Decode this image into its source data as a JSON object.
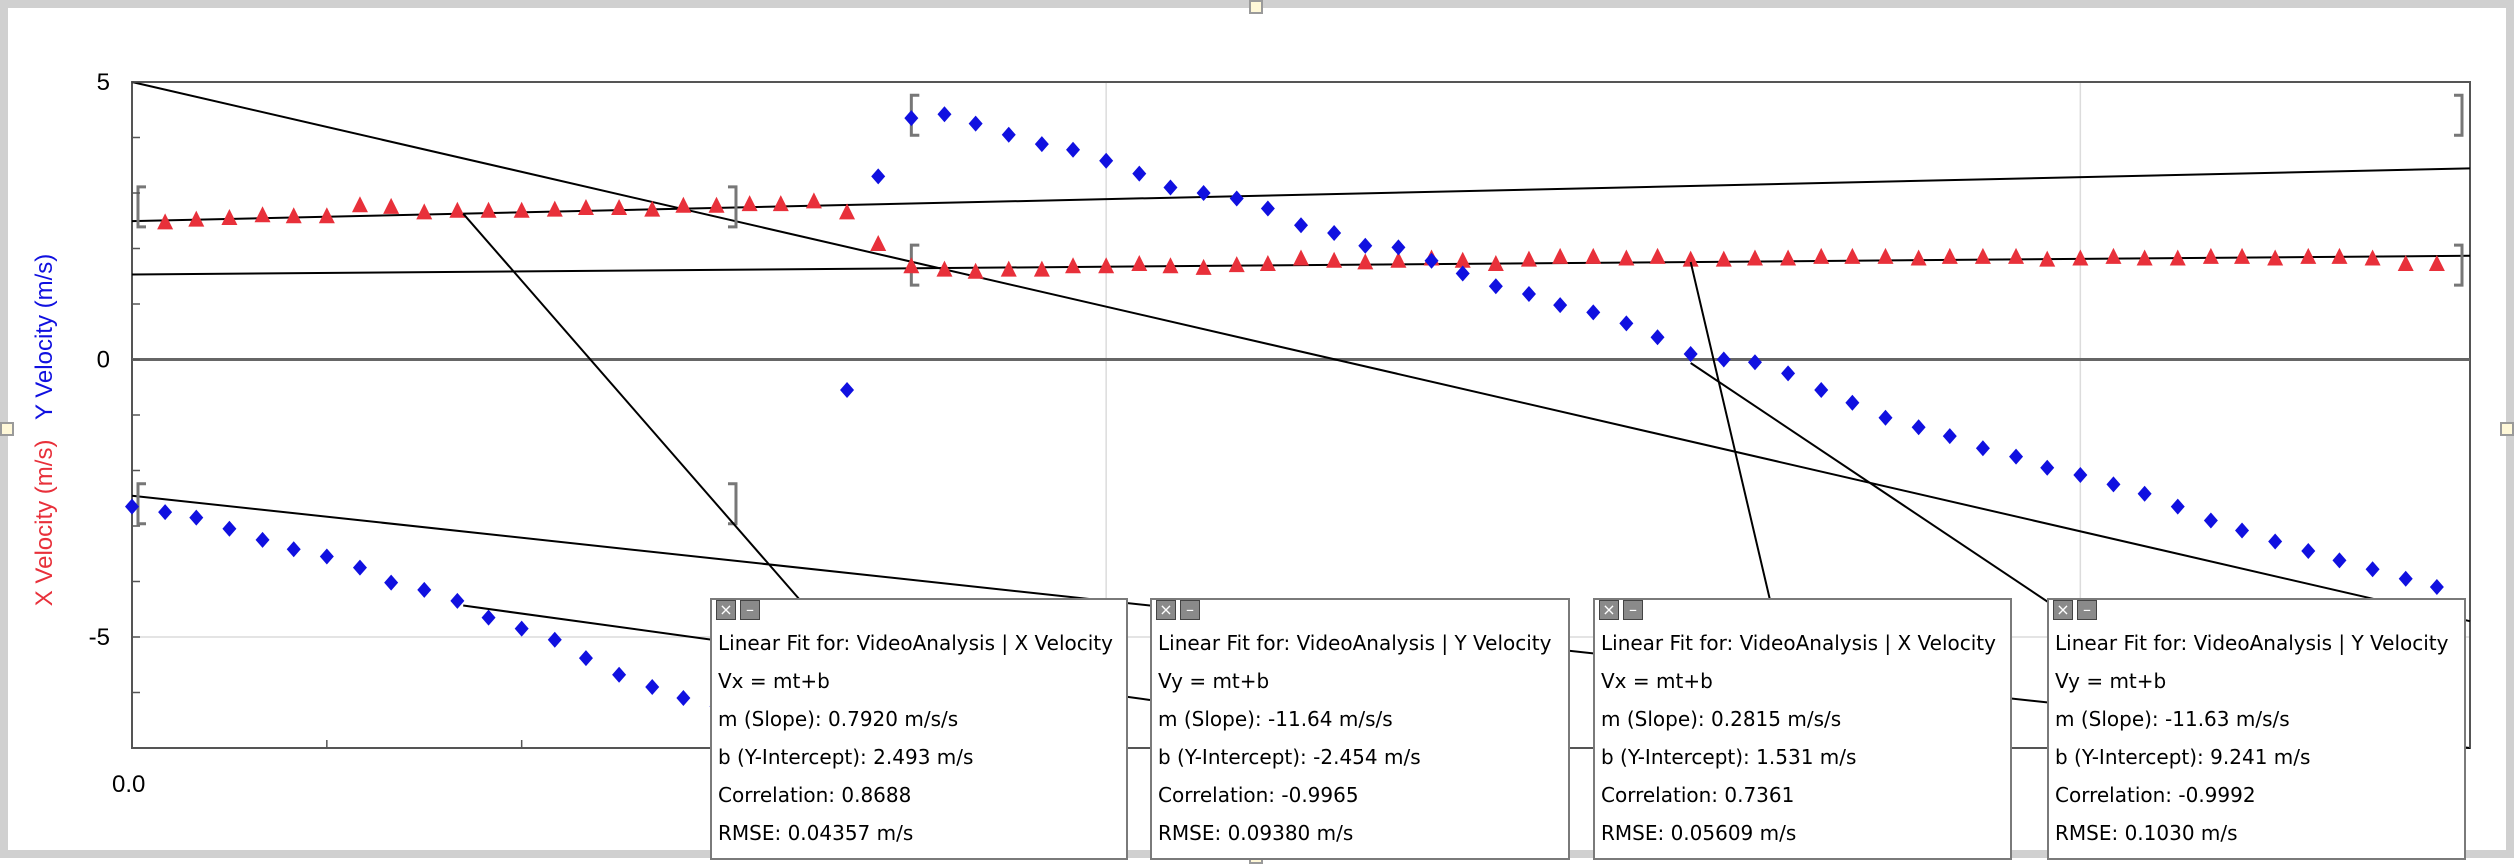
{
  "chart_data": {
    "type": "scatter",
    "y_axis_label_parts": [
      "X Velocity (m/s)",
      "Y Velocity (m/s)"
    ],
    "y_axis_label_colors": [
      "#e8303a",
      "#1010e0"
    ],
    "xlim": [
      0.0,
      1.2
    ],
    "ylim": [
      -7,
      5
    ],
    "x_tick_labels": [
      {
        "x": 0.0,
        "text": "0.0"
      }
    ],
    "y_tick_labels": [
      {
        "y": 5,
        "text": "5"
      },
      {
        "y": 0,
        "text": "0"
      },
      {
        "y": -5,
        "text": "-5"
      }
    ],
    "grid": true,
    "series": [
      {
        "name": "X Velocity",
        "marker": "triangle",
        "color": "#e8303a",
        "x": [
          0.017,
          0.033,
          0.05,
          0.067,
          0.083,
          0.1,
          0.117,
          0.133,
          0.15,
          0.167,
          0.183,
          0.2,
          0.217,
          0.233,
          0.25,
          0.267,
          0.283,
          0.3,
          0.317,
          0.333,
          0.35,
          0.367,
          0.383,
          0.4,
          0.417,
          0.433,
          0.45,
          0.467,
          0.483,
          0.5,
          0.517,
          0.533,
          0.55,
          0.567,
          0.583,
          0.6,
          0.617,
          0.633,
          0.65,
          0.667,
          0.683,
          0.7,
          0.717,
          0.733,
          0.75,
          0.767,
          0.783,
          0.8,
          0.817,
          0.833,
          0.85,
          0.867,
          0.883,
          0.9,
          0.917,
          0.933,
          0.95,
          0.967,
          0.983,
          1.0,
          1.017,
          1.033,
          1.05,
          1.067,
          1.083,
          1.1,
          1.117,
          1.133,
          1.15,
          1.167,
          1.183
        ],
        "y": [
          2.47,
          2.52,
          2.55,
          2.6,
          2.58,
          2.58,
          2.78,
          2.75,
          2.65,
          2.68,
          2.68,
          2.68,
          2.7,
          2.73,
          2.73,
          2.7,
          2.77,
          2.77,
          2.8,
          2.8,
          2.85,
          2.65,
          2.08,
          1.68,
          1.62,
          1.58,
          1.62,
          1.62,
          1.68,
          1.68,
          1.72,
          1.68,
          1.65,
          1.7,
          1.72,
          1.82,
          1.78,
          1.75,
          1.78,
          1.82,
          1.78,
          1.72,
          1.8,
          1.85,
          1.85,
          1.82,
          1.85,
          1.8,
          1.8,
          1.82,
          1.82,
          1.85,
          1.85,
          1.85,
          1.82,
          1.85,
          1.85,
          1.85,
          1.8,
          1.82,
          1.85,
          1.82,
          1.82,
          1.85,
          1.85,
          1.82,
          1.85,
          1.85,
          1.82,
          1.72,
          1.72
        ]
      },
      {
        "name": "Y Velocity",
        "marker": "diamond",
        "color": "#1010e0",
        "x": [
          0.0,
          0.017,
          0.033,
          0.05,
          0.067,
          0.083,
          0.1,
          0.117,
          0.133,
          0.15,
          0.167,
          0.183,
          0.2,
          0.217,
          0.233,
          0.25,
          0.267,
          0.283,
          0.3,
          0.317,
          0.333,
          0.35,
          0.367,
          0.383,
          0.4,
          0.417,
          0.433,
          0.45,
          0.467,
          0.483,
          0.5,
          0.517,
          0.533,
          0.55,
          0.567,
          0.583,
          0.6,
          0.617,
          0.633,
          0.65,
          0.667,
          0.683,
          0.7,
          0.717,
          0.733,
          0.75,
          0.767,
          0.783,
          0.8,
          0.817,
          0.833,
          0.85,
          0.867,
          0.883,
          0.9,
          0.917,
          0.933,
          0.95,
          0.967,
          0.983,
          1.0,
          1.017,
          1.033,
          1.05,
          1.067,
          1.083,
          1.1,
          1.117,
          1.133,
          1.15,
          1.167,
          1.183
        ],
        "y": [
          -2.65,
          -2.75,
          -2.85,
          -3.05,
          -3.25,
          -3.42,
          -3.55,
          -3.75,
          -4.02,
          -4.15,
          -4.35,
          -4.65,
          -4.85,
          -5.05,
          -5.38,
          -5.68,
          -5.9,
          -6.1,
          -6.25,
          -6.4,
          -6.5,
          -6.6,
          -0.55,
          3.3,
          4.35,
          4.42,
          4.25,
          4.05,
          3.88,
          3.78,
          3.58,
          3.35,
          3.1,
          3.0,
          2.9,
          2.72,
          2.42,
          2.28,
          2.05,
          2.02,
          1.78,
          1.55,
          1.32,
          1.18,
          0.98,
          0.85,
          0.65,
          0.4,
          0.1,
          0.0,
          -0.05,
          -0.25,
          -0.55,
          -0.78,
          -1.05,
          -1.22,
          -1.38,
          -1.6,
          -1.75,
          -1.95,
          -2.08,
          -2.25,
          -2.42,
          -2.65,
          -2.9,
          -3.08,
          -3.28,
          -3.45,
          -3.62,
          -3.78,
          -3.95,
          -4.1
        ]
      }
    ],
    "fits": [
      {
        "series": "X Velocity",
        "m": 0.792,
        "b": 2.493,
        "t_range": [
          0.0,
          0.31
        ],
        "marker_y_left": 2.75
      },
      {
        "series": "Y Velocity",
        "m": -11.64,
        "b": -2.454,
        "t_range": [
          0.0,
          0.31
        ],
        "marker_y_left": -2.6
      },
      {
        "series": "X Velocity",
        "m": 0.2815,
        "b": 1.531,
        "t_range": [
          0.4,
          1.2
        ],
        "marker_y_left": 1.7
      },
      {
        "series": "Y Velocity",
        "m": -11.63,
        "b": 9.241,
        "t_range": [
          0.4,
          1.2
        ],
        "marker_y_left": 4.4
      }
    ]
  },
  "fit_boxes": [
    {
      "title": "Linear Fit for: VideoAnalysis | X Velocity",
      "equation": "Vx = mt+b",
      "slope": "m (Slope): 0.7920 m/s/s",
      "intercept": "b (Y-Intercept): 2.493 m/s",
      "correlation": "Correlation: 0.8688",
      "rmse": "RMSE: 0.04357 m/s"
    },
    {
      "title": "Linear Fit for: VideoAnalysis | Y Velocity",
      "equation": "Vy = mt+b",
      "slope": "m (Slope): -11.64 m/s/s",
      "intercept": "b (Y-Intercept): -2.454 m/s",
      "correlation": "Correlation: -0.9965",
      "rmse": "RMSE: 0.09380 m/s"
    },
    {
      "title": "Linear Fit for: VideoAnalysis | X Velocity",
      "equation": "Vx = mt+b",
      "slope": "m (Slope): 0.2815 m/s/s",
      "intercept": "b (Y-Intercept): 1.531 m/s",
      "correlation": "Correlation: 0.7361",
      "rmse": "RMSE: 0.05609 m/s"
    },
    {
      "title": "Linear Fit for: VideoAnalysis | Y Velocity",
      "equation": "Vy = mt+b",
      "slope": "m (Slope): -11.63 m/s/s",
      "intercept": "b (Y-Intercept): 9.241 m/s",
      "correlation": "Correlation: -0.9992",
      "rmse": "RMSE: 0.1030 m/s"
    }
  ]
}
